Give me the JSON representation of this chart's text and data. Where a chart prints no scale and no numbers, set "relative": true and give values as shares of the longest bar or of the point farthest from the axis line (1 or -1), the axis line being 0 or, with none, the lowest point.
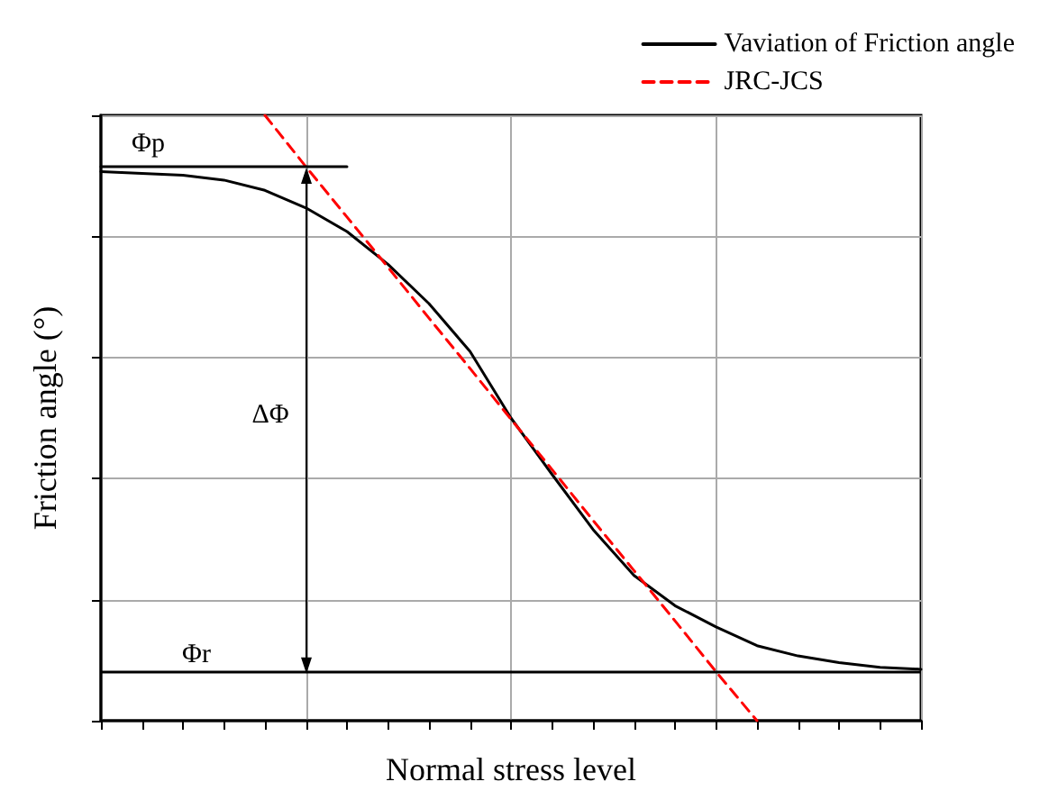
{
  "chart_data": {
    "type": "line",
    "relative": true,
    "xlabel": "Normal stress level",
    "ylabel": "Friction angle (°)",
    "categories": [
      null,
      null,
      null,
      null,
      null,
      null,
      null,
      null,
      null,
      null,
      null,
      null,
      null,
      null,
      null,
      null,
      null,
      null,
      null,
      null,
      null
    ],
    "series": [
      {
        "name": "Vaviation of Friction angle",
        "color": "#000000",
        "line_style": "solid",
        "values": [
          0.907,
          0.904,
          0.901,
          0.893,
          0.876,
          0.847,
          0.808,
          0.754,
          0.689,
          0.61,
          0.5,
          0.407,
          0.316,
          0.24,
          0.19,
          0.155,
          0.124,
          0.107,
          0.096,
          0.088,
          0.085
        ]
      },
      {
        "name": "JRC-JCS",
        "color": "#ff0000",
        "line_style": "dashed",
        "values": [
          null,
          null,
          null,
          null,
          1,
          0.915,
          0.832,
          0.749,
          0.665,
          0.582,
          0.498,
          0.415,
          0.331,
          0.248,
          0.165,
          0.081,
          0,
          null,
          null,
          null,
          null
        ]
      },
      {
        "color": "#000000",
        "line_style": "solid",
        "values": [
          0.915,
          0.915,
          0.915,
          0.915,
          0.915,
          0.915,
          0.915,
          null,
          null,
          null,
          null,
          null,
          null,
          null,
          null,
          null,
          null,
          null,
          null,
          null,
          null
        ]
      }
    ],
    "ref_lines": [
      {
        "axis": "y",
        "value": 0.079,
        "label": "Φr",
        "color": "#000000"
      }
    ],
    "annotations": [
      {
        "text": "Φp",
        "y": 0.915
      },
      "ΔΦ"
    ],
    "grid": true,
    "legend": "top right",
    "marker": "none"
  }
}
